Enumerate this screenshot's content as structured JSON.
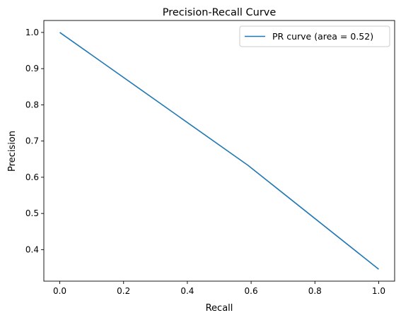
{
  "chart_data": {
    "type": "line",
    "title": "Precision-Recall Curve",
    "xlabel": "Recall",
    "ylabel": "Precision",
    "xlim": [
      -0.05,
      1.05
    ],
    "ylim": [
      0.313,
      1.033
    ],
    "xticks": [
      0.0,
      0.2,
      0.4,
      0.6,
      0.8,
      1.0
    ],
    "xtick_labels": [
      "0.0",
      "0.2",
      "0.4",
      "0.6",
      "0.8",
      "1.0"
    ],
    "yticks": [
      0.4,
      0.5,
      0.6,
      0.7,
      0.8,
      0.9,
      1.0
    ],
    "ytick_labels": [
      "0.4",
      "0.5",
      "0.6",
      "0.7",
      "0.8",
      "0.9",
      "1.0"
    ],
    "grid": false,
    "legend_position": "top-right",
    "series": [
      {
        "name": "PR curve (area = 0.52)",
        "color": "#1f77b4",
        "x": [
          0.0,
          0.59,
          1.0
        ],
        "y": [
          1.0,
          0.633,
          0.346
        ]
      }
    ]
  }
}
